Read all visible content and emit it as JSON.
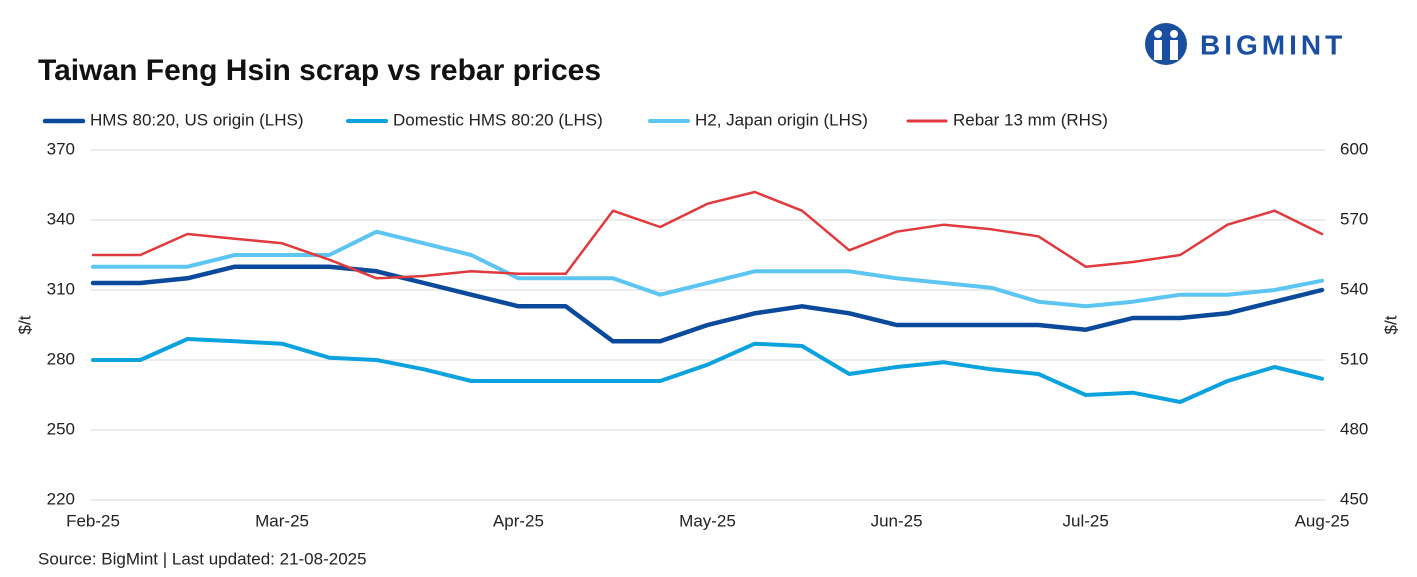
{
  "chart_data": {
    "type": "line",
    "title": "Taiwan Feng Hsin scrap vs rebar prices",
    "logo": "BIGMINT",
    "source": "Source: BigMint |  Last updated: 21-08-2025",
    "y_label": "$/t",
    "y2_label": "$/t",
    "categories": [
      "Feb-25",
      null,
      null,
      null,
      "Mar-25",
      null,
      null,
      null,
      null,
      "Apr-25",
      null,
      null,
      null,
      "May-25",
      null,
      null,
      null,
      "Jun-25",
      null,
      null,
      null,
      "Jul-25",
      null,
      null,
      null,
      null,
      "Aug-25"
    ],
    "ylim": [
      220,
      370
    ],
    "yticks": [
      220,
      250,
      280,
      310,
      340,
      370
    ],
    "y2lim": [
      450,
      600
    ],
    "y2ticks": [
      450,
      480,
      510,
      540,
      570,
      600
    ],
    "grid": true,
    "legend": "top",
    "series": [
      {
        "name": "HMS 80:20, US origin (LHS)",
        "color": "#0b4a9b",
        "values": [
          313,
          313,
          315,
          320,
          320,
          320,
          318,
          313,
          308,
          303,
          303,
          288,
          288,
          295,
          300,
          303,
          300,
          295,
          295,
          295,
          295,
          293,
          298,
          298,
          300,
          305,
          310
        ]
      },
      {
        "name": "Domestic HMS 80:20 (LHS)",
        "color": "#0ba2de",
        "values": [
          280,
          280,
          289,
          288,
          287,
          281,
          280,
          276,
          271,
          271,
          271,
          271,
          271,
          278,
          287,
          286,
          274,
          277,
          279,
          276,
          274,
          265,
          266,
          262,
          271,
          277,
          272
        ]
      },
      {
        "name": "H2, Japan origin (LHS)",
        "color": "#5cc5f1",
        "values": [
          320,
          320,
          320,
          325,
          325,
          325,
          335,
          330,
          325,
          315,
          315,
          315,
          308,
          313,
          318,
          318,
          318,
          315,
          313,
          311,
          305,
          303,
          305,
          308,
          308,
          310,
          314
        ]
      },
      {
        "name": "Rebar 13 mm (RHS)",
        "color": "#e03a3e",
        "axis": "y2",
        "values": [
          555,
          555,
          564,
          562,
          560,
          553,
          545,
          546,
          548,
          547,
          547,
          574,
          567,
          577,
          582,
          574,
          557,
          565,
          568,
          566,
          563,
          550,
          552,
          555,
          568,
          574,
          564
        ]
      }
    ]
  }
}
